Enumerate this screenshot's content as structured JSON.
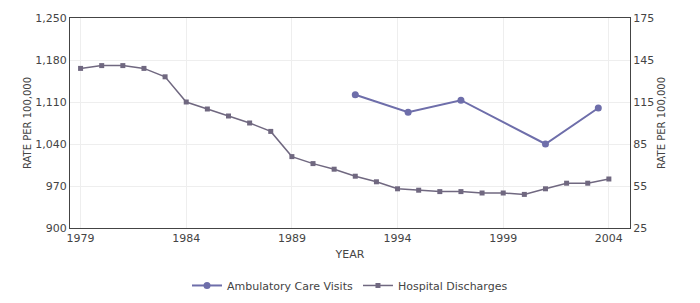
{
  "chart_data": {
    "type": "line",
    "xlabel": "YEAR",
    "ylabel": "RATE PER 100,000",
    "y2label": "RATE PER 100,000",
    "xlim": [
      1978.5,
      2005.0
    ],
    "xticks": [
      1979,
      1984,
      1989,
      1994,
      1999,
      2004
    ],
    "ylim": [
      900,
      1250
    ],
    "yticks": [
      900,
      970,
      {
        "value": 1040,
        "label": "1,040"
      },
      {
        "value": 1110,
        "label": "1,110"
      },
      {
        "value": 1180,
        "label": "1,180"
      },
      {
        "value": 1250,
        "label": "1,250"
      }
    ],
    "y2lim": [
      25,
      175
    ],
    "y2ticks": [
      25,
      55,
      85,
      115,
      145,
      175
    ],
    "grid": true,
    "legend": "bottom",
    "series": [
      {
        "name": "Ambulatory Care Visits",
        "color": "#6e6eaa",
        "marker": "circle",
        "x": [
          1992,
          1994.5,
          1997,
          2001,
          2003.5
        ],
        "values": [
          1122,
          1093,
          1113,
          1040,
          1100
        ]
      },
      {
        "name": "Hospital Discharges",
        "color": "#706880",
        "marker": "square",
        "axis": "y2",
        "x": [
          1979,
          1980,
          1981,
          1982,
          1983,
          1984,
          1985,
          1986,
          1987,
          1988,
          1989,
          1990,
          1991,
          1992,
          1993,
          1994,
          1995,
          1996,
          1997,
          1998,
          1999,
          2000,
          2001,
          2002,
          2003,
          2004
        ],
        "values": [
          139,
          141,
          141,
          139,
          133,
          115,
          110,
          105,
          100,
          94,
          76,
          71,
          67,
          62,
          58,
          53,
          52,
          51,
          51,
          50,
          50,
          49,
          53,
          57,
          57,
          60
        ]
      }
    ]
  }
}
